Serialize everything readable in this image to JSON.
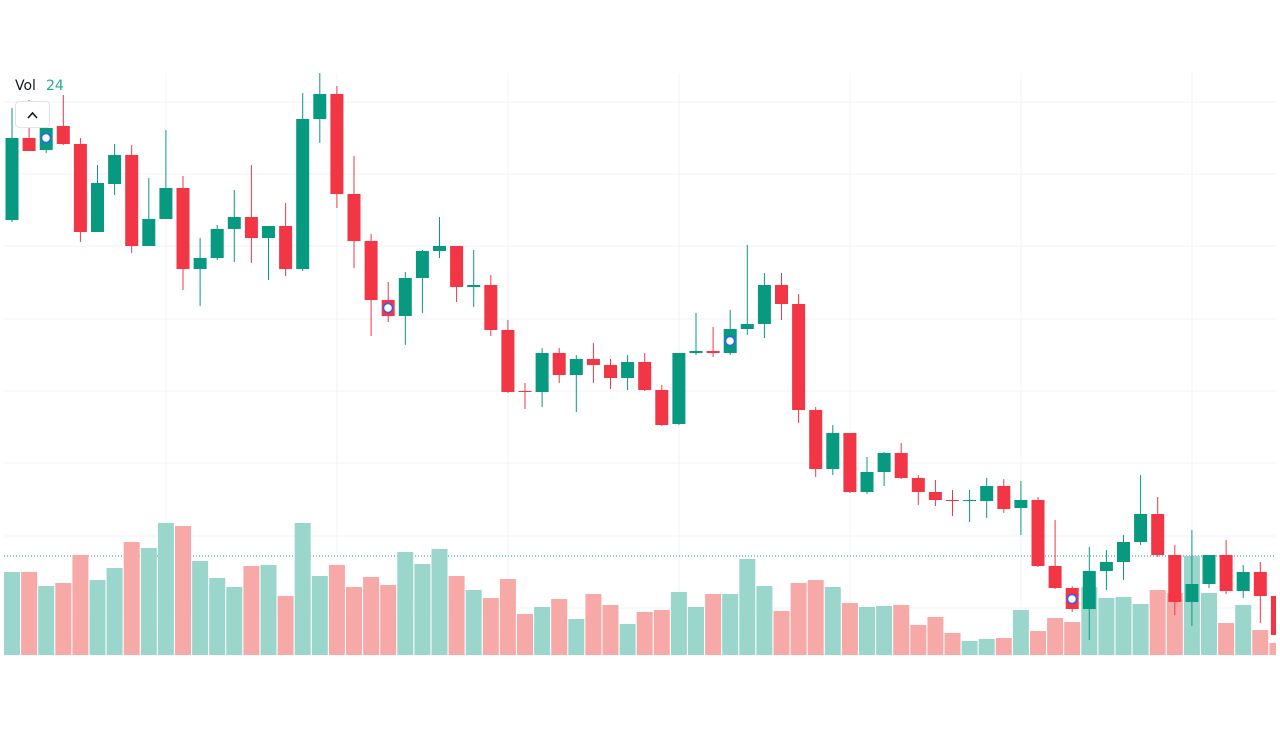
{
  "chart_data": {
    "type": "candlestick",
    "volume_label": "Vol",
    "open": [
      510,
      592,
      580,
      604,
      586,
      498,
      546,
      575,
      484,
      511,
      542,
      461,
      472,
      501,
      513,
      492,
      504,
      461,
      611,
      636,
      536,
      489,
      430,
      414,
      452,
      479,
      484,
      443,
      445,
      400,
      339,
      338,
      377,
      355,
      371,
      365,
      352,
      368,
      340,
      306,
      377,
      379,
      377,
      401,
      406,
      445,
      426,
      320,
      261,
      297,
      238,
      258,
      277,
      252,
      238,
      230,
      229,
      229,
      244,
      222,
      230,
      164,
      142,
      121,
      159,
      168,
      188,
      216,
      175,
      128,
      146,
      175,
      139,
      158,
      134
    ],
    "high": [
      622,
      630,
      612,
      635,
      592,
      565,
      586,
      585,
      552,
      600,
      554,
      492,
      505,
      540,
      565,
      504,
      527,
      637,
      657,
      644,
      574,
      496,
      448,
      458,
      480,
      513,
      484,
      480,
      455,
      410,
      347,
      382,
      382,
      375,
      387,
      371,
      375,
      377,
      345,
      377,
      417,
      403,
      420,
      485,
      457,
      457,
      436,
      323,
      305,
      297,
      273,
      278,
      287,
      255,
      250,
      240,
      240,
      252,
      251,
      249,
      233,
      210,
      144,
      183,
      180,
      195,
      255,
      233,
      185,
      200,
      175,
      190,
      165,
      168,
      145
    ],
    "low": [
      508,
      579,
      577,
      585,
      488,
      498,
      535,
      477,
      484,
      511,
      440,
      424,
      470,
      468,
      467,
      450,
      454,
      459,
      587,
      522,
      462,
      394,
      408,
      385,
      417,
      472,
      428,
      423,
      394,
      337,
      321,
      323,
      347,
      318,
      347,
      341,
      340,
      339,
      304,
      305,
      375,
      373,
      375,
      395,
      392,
      410,
      307,
      253,
      255,
      237,
      236,
      244,
      251,
      225,
      224,
      214,
      208,
      212,
      217,
      195,
      163,
      141,
      118,
      90,
      140,
      150,
      185,
      173,
      115,
      104,
      142,
      136,
      132,
      107,
      90
    ],
    "close": [
      592,
      579,
      602,
      586,
      498,
      547,
      575,
      484,
      511,
      542,
      461,
      472,
      501,
      513,
      492,
      504,
      461,
      611,
      636,
      536,
      489,
      430,
      414,
      452,
      479,
      484,
      443,
      445,
      400,
      338,
      338,
      377,
      355,
      371,
      365,
      352,
      368,
      340,
      305,
      377,
      379,
      377,
      401,
      406,
      445,
      426,
      320,
      261,
      297,
      238,
      258,
      277,
      252,
      238,
      230,
      229,
      230,
      244,
      221,
      230,
      164,
      142,
      121,
      159,
      168,
      188,
      216,
      175,
      128,
      146,
      175,
      139,
      158,
      134,
      95
    ],
    "volume": [
      166,
      166,
      138,
      144,
      200,
      150,
      174,
      226,
      214,
      264,
      258,
      188,
      154,
      136,
      178,
      180,
      118,
      264,
      158,
      180,
      136,
      156,
      140,
      206,
      182,
      212,
      158,
      130,
      114,
      152,
      82,
      96,
      112,
      72,
      122,
      100,
      62,
      86,
      90,
      126,
      96,
      122,
      122,
      192,
      138,
      88,
      144,
      150,
      136,
      104,
      96,
      98,
      100,
      60,
      76,
      44,
      28,
      32,
      34,
      90,
      48,
      74,
      66,
      136,
      114,
      116,
      102,
      130,
      124,
      198,
      124,
      64,
      100,
      50,
      24
    ],
    "ylim": [
      0,
      730
    ],
    "yticks": [
      628,
      556,
      484,
      411,
      339,
      267,
      194,
      122
    ],
    "grid": true,
    "volume_lim": [
      0,
      400
    ],
    "price_line": 174,
    "up_color": "#089981",
    "down_color": "#f23645",
    "volume_up_color": "#9ad6cc",
    "volume_down_color": "#f7a9a8"
  }
}
